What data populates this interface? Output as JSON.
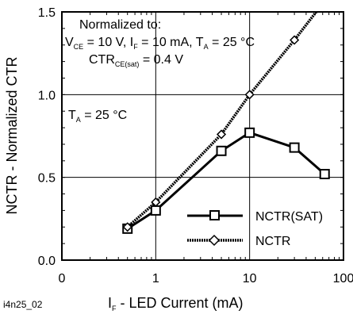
{
  "chart_data": {
    "type": "line",
    "x_scale": "log",
    "xlim": [
      0.1,
      100
    ],
    "ylim": [
      0,
      1.5
    ],
    "grid": true,
    "legend_position": "bottom-right",
    "x_ticks": [
      {
        "value": 0.1,
        "label": "0"
      },
      {
        "value": 1,
        "label": "1"
      },
      {
        "value": 10,
        "label": "10"
      },
      {
        "value": 100,
        "label": "100"
      }
    ],
    "y_ticks": [
      {
        "value": 0,
        "label": "0.0"
      },
      {
        "value": 0.5,
        "label": "0.5"
      },
      {
        "value": 1.0,
        "label": "1.0"
      },
      {
        "value": 1.5,
        "label": "1.5"
      }
    ],
    "xlabel": {
      "main": "I",
      "sub": "F",
      "rest": " - LED Current (mA)"
    },
    "ylabel": "NCTR - Normalized CTR",
    "figure_id": "i4n25_02",
    "annotations": {
      "normalized_to": "Normalized to:",
      "cond_vce": "V",
      "cond_vce_sub": "CE",
      "cond_vce_val": " = 10 V, I",
      "cond_if_sub": "F",
      "cond_if_val": " = 10 mA, T",
      "cond_ta_sub": "A",
      "cond_ta_val": " = 25 °C",
      "ctr_main": "CTR",
      "ctr_sub": "CE(sat)",
      "ctr_val": " = 0.4 V",
      "ta_main": "T",
      "ta_sub": "A",
      "ta_val": " = 25 °C"
    },
    "series": [
      {
        "name": "NCTR(SAT)",
        "marker": "square",
        "points": [
          [
            0.5,
            0.19
          ],
          [
            1,
            0.3
          ],
          [
            5,
            0.66
          ],
          [
            10,
            0.77
          ],
          [
            30,
            0.68
          ],
          [
            63,
            0.52
          ]
        ]
      },
      {
        "name": "NCTR",
        "marker": "diamond",
        "points": [
          [
            0.5,
            0.2
          ],
          [
            1,
            0.35
          ],
          [
            5,
            0.76
          ],
          [
            10,
            1.0
          ],
          [
            30,
            1.33
          ],
          [
            60,
            1.55
          ]
        ]
      }
    ]
  }
}
